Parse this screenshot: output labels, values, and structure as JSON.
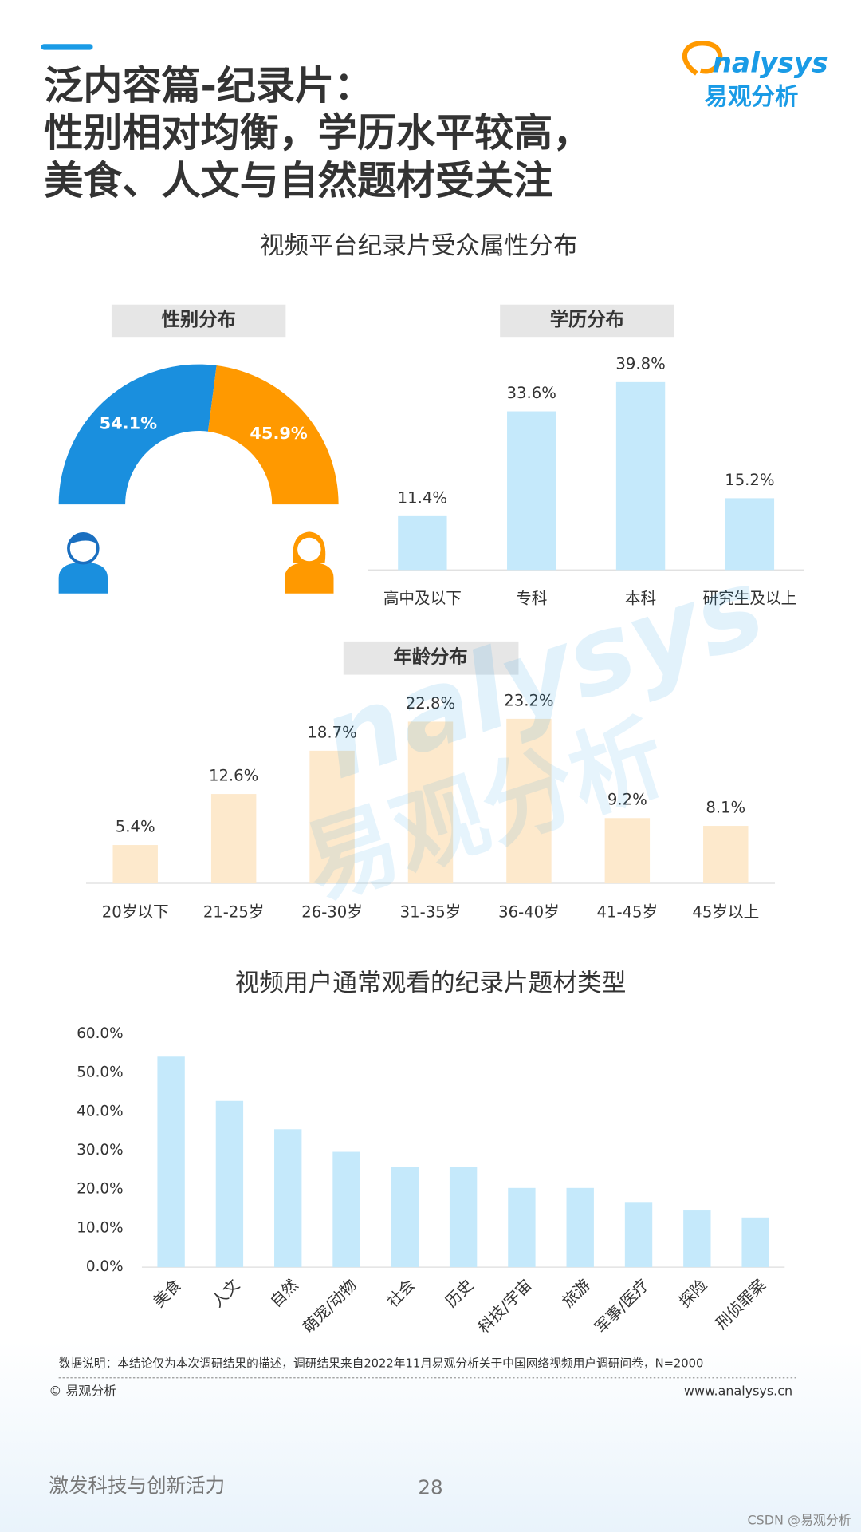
{
  "header": {
    "title_lines": [
      "泛内容篇-纪录片：",
      "性别相对均衡，学历水平较高，",
      "美食、人文与自然题材受关注"
    ],
    "logo_en": "nalysys",
    "logo_cn": "易观分析",
    "subtitle": "视频平台纪录片受众属性分布"
  },
  "chart_data": [
    {
      "type": "pie",
      "title": "性别分布",
      "values": [
        54.1,
        45.9
      ],
      "value_labels": [
        "54.1%",
        "45.9%"
      ],
      "colors": [
        "#1a8fde",
        "#ff9900"
      ]
    },
    {
      "type": "bar",
      "title": "学历分布",
      "categories": [
        "高中及以下",
        "专科",
        "本科",
        "研究生及以上"
      ],
      "values": [
        11.4,
        33.6,
        39.8,
        15.2
      ],
      "value_labels": [
        "11.4%",
        "33.6%",
        "39.8%",
        "15.2%"
      ],
      "color": "#c5e9fb"
    },
    {
      "type": "bar",
      "title": "年龄分布",
      "categories": [
        "20岁以下",
        "21-25岁",
        "26-30岁",
        "31-35岁",
        "36-40岁",
        "41-45岁",
        "45岁以上"
      ],
      "values": [
        5.4,
        12.6,
        18.7,
        22.8,
        23.2,
        9.2,
        8.1
      ],
      "value_labels": [
        "5.4%",
        "12.6%",
        "18.7%",
        "22.8%",
        "23.2%",
        "9.2%",
        "8.1%"
      ],
      "color": "#fde9cc"
    },
    {
      "type": "bar",
      "title": "视频用户通常观看的纪录片题材类型",
      "categories": [
        "美食",
        "人文",
        "自然",
        "萌宠/动物",
        "社会",
        "历史",
        "科技/宇宙",
        "旅游",
        "军事/医疗",
        "探险",
        "刑侦罪案"
      ],
      "values": [
        54.2,
        42.8,
        35.5,
        29.7,
        25.9,
        25.9,
        20.4,
        20.4,
        16.6,
        14.6,
        12.8
      ],
      "color": "#c5e9fb",
      "ylim": [
        0,
        60
      ],
      "yticks": [
        {
          "value": 0,
          "label": "0.0%"
        },
        {
          "value": 10,
          "label": "10.0%"
        },
        {
          "value": 20,
          "label": "20.0%"
        },
        {
          "value": 30,
          "label": "30.0%"
        },
        {
          "value": 40,
          "label": "40.0%"
        },
        {
          "value": 50,
          "label": "50.0%"
        },
        {
          "value": 60,
          "label": "60.0%"
        }
      ]
    }
  ],
  "footer": {
    "note": "数据说明：本结论仅为本次调研结果的描述，调研结果来自2022年11月易观分析关于中国网络视频用户调研问卷，N=2000",
    "copyright": "© 易观分析",
    "website": "www.analysys.cn",
    "slogan": "激发科技与创新活力",
    "page": "28",
    "source": "CSDN @易观分析"
  }
}
